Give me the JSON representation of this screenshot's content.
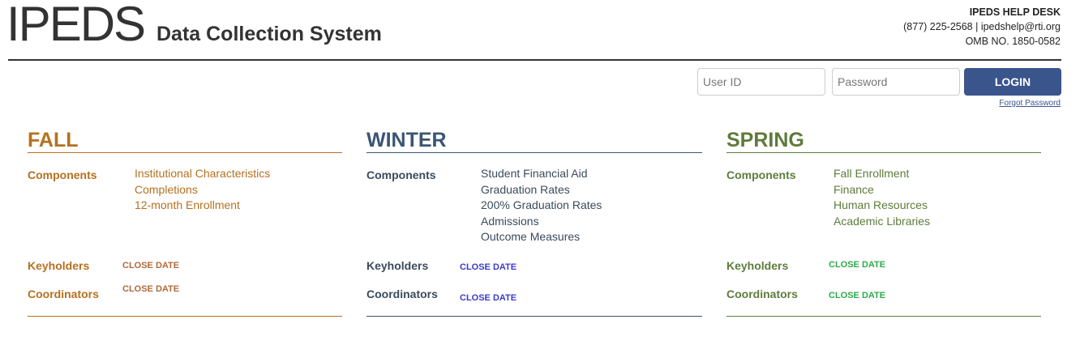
{
  "header": {
    "logo": "IPEDS",
    "subtitle": "Data Collection System",
    "help_title": "IPEDS HELP DESK",
    "phone": "(877) 225-2568",
    "sep": " | ",
    "email": "ipedshelp@rti.org",
    "omb": "OMB NO. 1850-0582"
  },
  "login": {
    "user_placeholder": "User ID",
    "password_placeholder": "Password",
    "button": "LOGIN",
    "forgot": "Forgot Password"
  },
  "colors": {
    "fall": "#b5701f",
    "winter": "#3b5574",
    "spring": "#5e7b3c",
    "winter_close": "#3a3acc",
    "spring_close": "#2eaa4a"
  },
  "seasons": [
    {
      "title": "FALL",
      "components_label": "Components",
      "components": [
        "Institutional Characteristics",
        "Completions",
        "12-month Enrollment"
      ],
      "keyholders_label": "Keyholders",
      "coordinators_label": "Coordinators",
      "keyholders_date": "CLOSE DATE",
      "coordinators_date": "CLOSE DATE"
    },
    {
      "title": "WINTER",
      "components_label": "Components",
      "components": [
        "Student Financial Aid",
        "Graduation Rates",
        "200% Graduation Rates",
        "Admissions",
        "Outcome Measures"
      ],
      "keyholders_label": "Keyholders",
      "coordinators_label": "Coordinators",
      "keyholders_date": "CLOSE DATE",
      "coordinators_date": "CLOSE DATE"
    },
    {
      "title": "SPRING",
      "components_label": "Components",
      "components": [
        "Fall Enrollment",
        "Finance",
        "Human Resources",
        "Academic Libraries"
      ],
      "keyholders_label": "Keyholders",
      "coordinators_label": "Coordinators",
      "keyholders_date": "CLOSE DATE",
      "coordinators_date": "CLOSE DATE"
    }
  ]
}
